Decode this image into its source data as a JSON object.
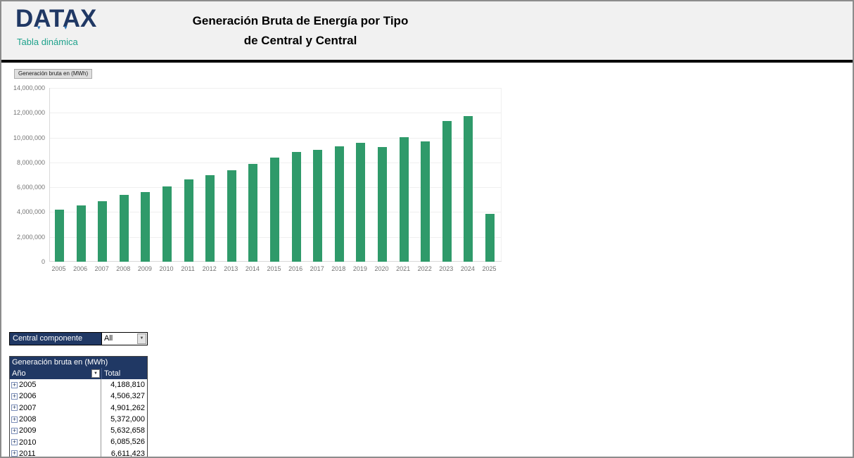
{
  "header": {
    "logo_text": "DATAX",
    "logo_subtitle": "Tabla dinámica",
    "title_line1": "Generación Bruta de Energía por Tipo",
    "title_line2": "de Central y Central"
  },
  "chart_data": {
    "type": "bar",
    "field_button_label": "Generación bruta en (MWh)",
    "categories": [
      "2005",
      "2006",
      "2007",
      "2008",
      "2009",
      "2010",
      "2011",
      "2012",
      "2013",
      "2014",
      "2015",
      "2016",
      "2017",
      "2018",
      "2019",
      "2020",
      "2021",
      "2022",
      "2023",
      "2024",
      "2025"
    ],
    "values": [
      4188810,
      4506327,
      4901262,
      5372000,
      5632658,
      6085526,
      6611423,
      6950000,
      7370000,
      7880000,
      8390000,
      8840000,
      9010000,
      9300000,
      9580000,
      9240000,
      10030000,
      9690000,
      11340000,
      11740000,
      3850000
    ],
    "ylim": [
      0,
      14000000
    ],
    "ytick_interval": 2000000,
    "ytick_labels": [
      "0",
      "2,000,000",
      "4,000,000",
      "6,000,000",
      "8,000,000",
      "10,000,000",
      "12,000,000",
      "14,000,000"
    ],
    "bar_color": "#2F9A6A",
    "grid": true,
    "legend_position": "none"
  },
  "filter": {
    "label": "Central componente",
    "value": "All"
  },
  "pivot": {
    "title": "Generación bruta en (MWh)",
    "row_header": "Año",
    "value_header": "Total",
    "rows": [
      {
        "year": "2005",
        "total": "4,188,810"
      },
      {
        "year": "2006",
        "total": "4,506,327"
      },
      {
        "year": "2007",
        "total": "4,901,262"
      },
      {
        "year": "2008",
        "total": "5,372,000"
      },
      {
        "year": "2009",
        "total": "5,632,658"
      },
      {
        "year": "2010",
        "total": "6,085,526"
      },
      {
        "year": "2011",
        "total": "6,611,423"
      }
    ]
  },
  "icons": {
    "dropdown_arrow": "▼",
    "expand_plus": "+",
    "logo_accent": "▾"
  },
  "colors": {
    "navy": "#203864",
    "teal": "#1FA28C",
    "bar_green": "#2F9A6A",
    "header_bg": "#F1F1F1",
    "axis_text": "#737373"
  }
}
